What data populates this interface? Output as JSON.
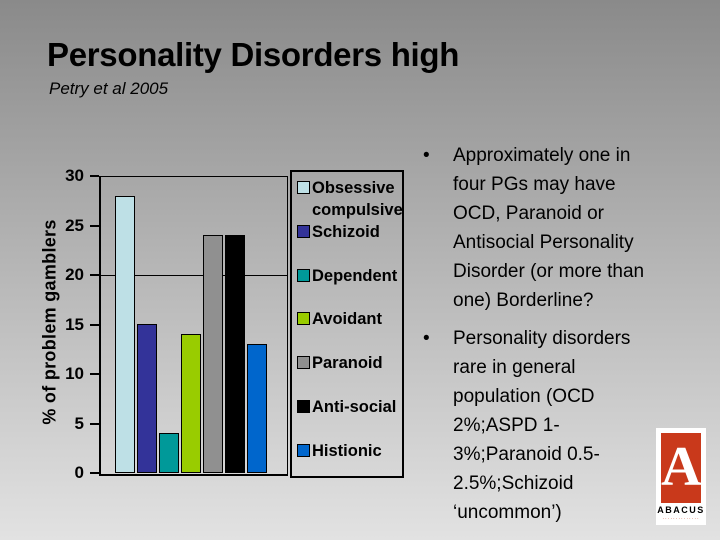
{
  "slide": {
    "title": "Personality Disorders high",
    "subtitle": "Petry et al 2005"
  },
  "chart_data": {
    "type": "bar",
    "title": "",
    "xlabel": "",
    "ylabel": "% of problem gamblers",
    "ylim": [
      0,
      30
    ],
    "yticks": [
      0,
      5,
      10,
      15,
      20,
      25,
      30
    ],
    "gridlines": [
      20
    ],
    "grid": "major-horizontal-only",
    "legend_position": "right",
    "categories": [
      "Obsessive compulsive",
      "Schizoid",
      "Dependent",
      "Avoidant",
      "Paranoid",
      "Anti-social",
      "Histionic"
    ],
    "legend_labels": [
      "Obsessive\ncompulsive",
      "Schizoid",
      "Dependent",
      "Avoidant",
      "Paranoid",
      "Anti-social",
      "Histionic"
    ],
    "values": [
      28,
      15,
      4,
      14,
      24,
      24,
      13
    ],
    "colors": [
      "#bee0e6",
      "#333399",
      "#009999",
      "#99cc00",
      "#909090",
      "#000000",
      "#0066cc"
    ]
  },
  "bullets": {
    "glyph": "•",
    "items": [
      {
        "text": "Approximately one in\nfour PGs may have\nOCD, Paranoid or\nAntisocial Personality\nDisorder (or more than\none) Borderline?"
      },
      {
        "text": "Personality disorders\nrare in general\npopulation (OCD\n2%;ASPD 1-\n3%;Paranoid 0.5-\n2.5%;Schizoid\n‘uncommon’)"
      }
    ]
  },
  "logo": {
    "letter": "A",
    "name": "ABACUS",
    "tagline": "··············",
    "brand_color": "#c9391b"
  }
}
